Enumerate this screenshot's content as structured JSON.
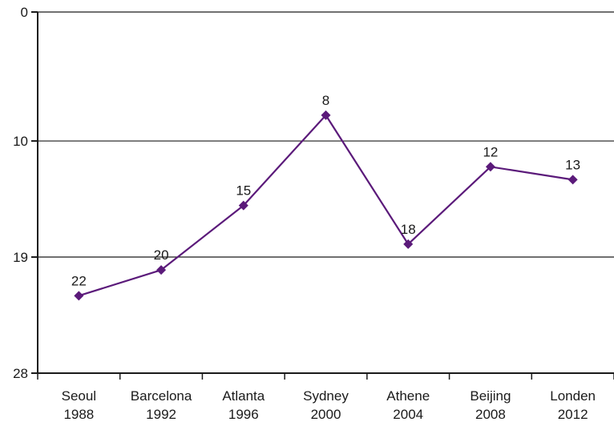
{
  "chart_data": {
    "type": "line",
    "title": "",
    "xlabel": "",
    "ylabel": "",
    "categories": [
      {
        "city": "Seoul",
        "year": "1988"
      },
      {
        "city": "Barcelona",
        "year": "1992"
      },
      {
        "city": "Atlanta",
        "year": "1996"
      },
      {
        "city": "Sydney",
        "year": "2000"
      },
      {
        "city": "Athene",
        "year": "2004"
      },
      {
        "city": "Beijing",
        "year": "2008"
      },
      {
        "city": "Londen",
        "year": "2012"
      }
    ],
    "series": [
      {
        "values": [
          22,
          20,
          15,
          8,
          18,
          12,
          13
        ],
        "color": "#5b1a7a"
      }
    ],
    "ylim": [
      0,
      28
    ],
    "y_reversed": true,
    "y_ticks": [
      0,
      10,
      19,
      28
    ],
    "y_tick_labels": [
      "0",
      "10",
      "19",
      "28"
    ],
    "grid": "horizontal",
    "marker": "diamond"
  }
}
